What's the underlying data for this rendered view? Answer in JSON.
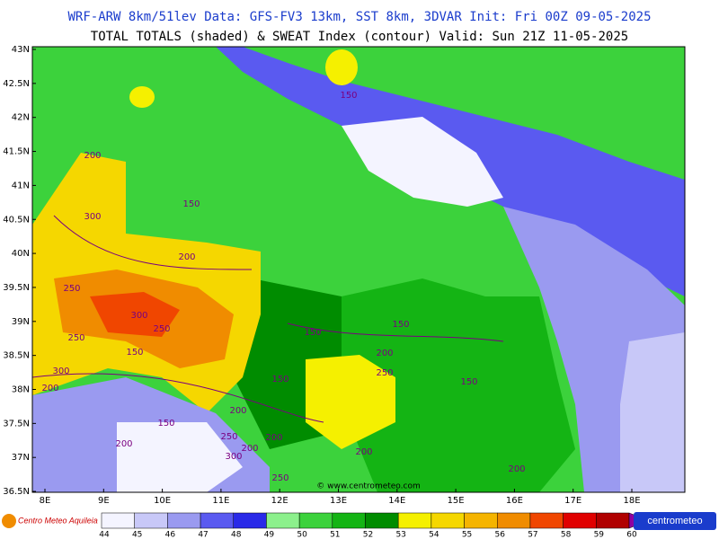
{
  "header": {
    "line1": "WRF-ARW 8km/51lev  Data: GFS-FV3 13km, SST 8km, 3DVAR  Init: Fri 00Z 09-05-2025",
    "line2": "TOTAL TOTALS (shaded) & SWEAT Index (contour)  Valid: Sun 21Z 11-05-2025"
  },
  "map": {
    "lat_labels": [
      "43N",
      "42.5N",
      "42N",
      "41.5N",
      "41N",
      "40.5N",
      "40N",
      "39.5N",
      "39N",
      "38.5N",
      "38N",
      "37.5N",
      "37N",
      "36.5N"
    ],
    "lon_labels": [
      "8E",
      "9E",
      "10E",
      "11E",
      "12E",
      "13E",
      "14E",
      "15E",
      "16E",
      "17E",
      "18E"
    ],
    "contour_labels": [
      150,
      200,
      300,
      150,
      200,
      250,
      300,
      250,
      250,
      150,
      150,
      150,
      200,
      250,
      150,
      150,
      300,
      200,
      200,
      150,
      250,
      200,
      200,
      200,
      300,
      200,
      250,
      200
    ],
    "watermark": "© www.centrometeo.com"
  },
  "colorbar": {
    "labels": [
      44,
      45,
      46,
      47,
      48,
      49,
      50,
      51,
      52,
      53,
      54,
      55,
      56,
      57,
      58,
      59,
      60
    ],
    "colors": [
      "#f4f4ff",
      "#c8c8f8",
      "#9a9af0",
      "#5a5af0",
      "#2a2ae8",
      "#8cf08c",
      "#3cd23c",
      "#14b414",
      "#008c00",
      "#f5f000",
      "#f5d700",
      "#f5b400",
      "#f08c00",
      "#f04600",
      "#e00000",
      "#b00000",
      "#f060f0",
      "#d020d0",
      "#9000a0"
    ]
  },
  "logos": {
    "left": "Centro Meteo Aquileia",
    "right": "centrometeo"
  }
}
